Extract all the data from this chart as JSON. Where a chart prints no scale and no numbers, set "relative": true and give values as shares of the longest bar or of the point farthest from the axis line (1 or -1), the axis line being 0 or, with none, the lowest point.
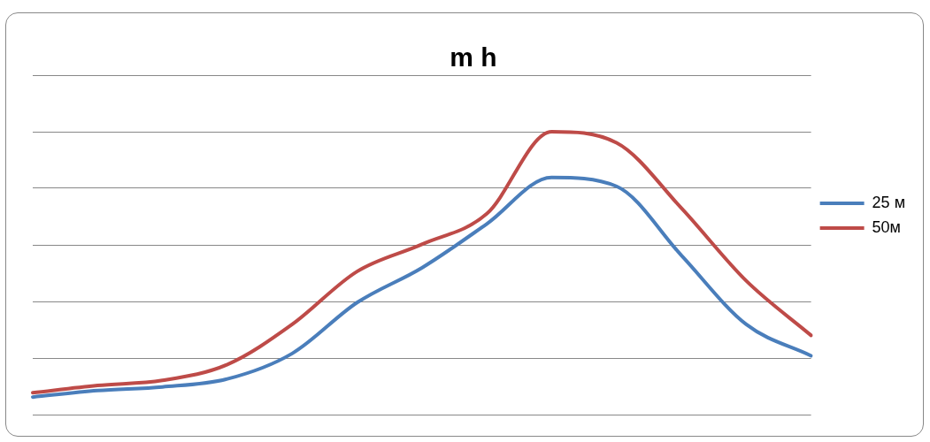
{
  "chart_data": {
    "type": "line",
    "title": "m h",
    "relative": true,
    "grid": "y",
    "legend": "right",
    "marker": "none",
    "line_style": "solid",
    "categories": [
      null,
      null,
      null,
      null,
      null,
      null,
      null,
      null,
      null,
      null,
      null,
      null,
      null
    ],
    "series": [
      {
        "name": "25 м",
        "color": "#4a7ebb",
        "values": [
          0.062,
          0.085,
          0.098,
          0.126,
          0.216,
          0.396,
          0.519,
          0.674,
          0.838,
          0.807,
          0.563,
          0.319,
          0.208
        ]
      },
      {
        "name": "50м",
        "color": "#be4b48",
        "values": [
          0.077,
          0.103,
          0.121,
          0.177,
          0.319,
          0.506,
          0.602,
          0.71,
          1.0,
          0.961,
          0.73,
          0.473,
          0.28
        ]
      }
    ]
  }
}
